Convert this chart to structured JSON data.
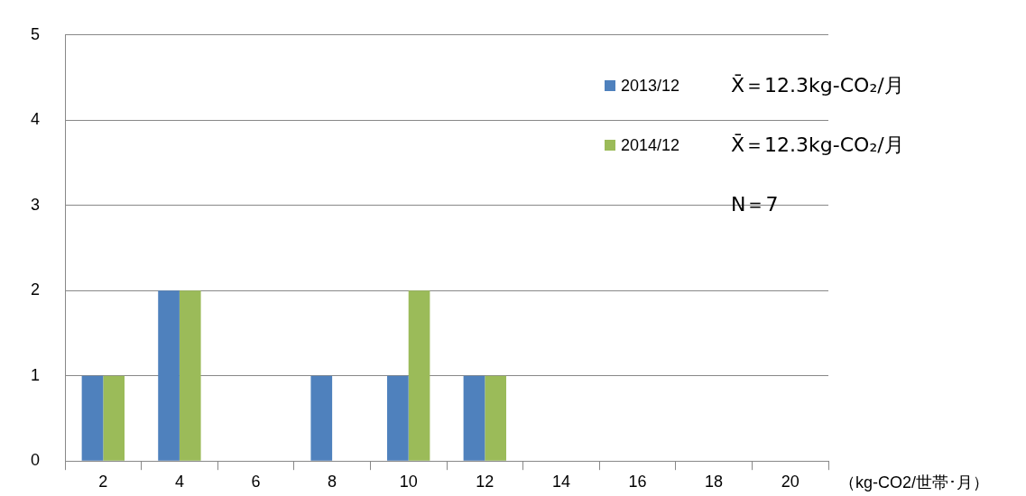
{
  "chart_data": {
    "type": "bar",
    "categories": [
      "2",
      "4",
      "6",
      "8",
      "10",
      "12",
      "14",
      "16",
      "18",
      "20"
    ],
    "series": [
      {
        "name": "2013/12",
        "color": "#4f81bd",
        "values": [
          1,
          2,
          0,
          1,
          1,
          1,
          0,
          0,
          0,
          0
        ]
      },
      {
        "name": "2014/12",
        "color": "#9bbb59",
        "values": [
          1,
          2,
          0,
          0,
          2,
          1,
          0,
          0,
          0,
          0
        ]
      }
    ],
    "ylim": [
      0,
      5
    ],
    "yticks": [
      0,
      1,
      2,
      3,
      4,
      5
    ],
    "grid": "y",
    "legend": "top right",
    "xlabel": "（kg-CO2/世帯･月）",
    "annotations": [
      "X̄＝12.3kg-CO₂/月",
      "X̄＝12.3kg-CO₂/月",
      "N＝7"
    ]
  }
}
